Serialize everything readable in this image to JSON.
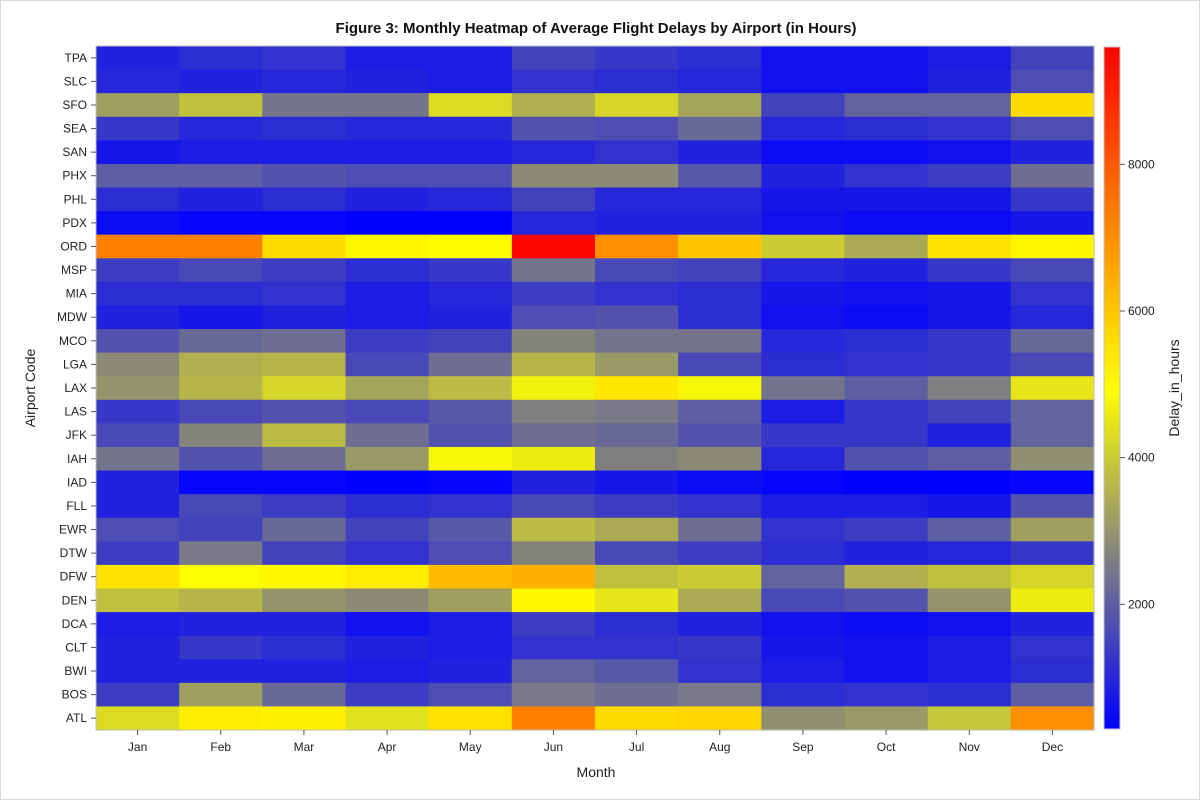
{
  "chart_data": {
    "type": "heatmap",
    "title": "Figure 3: Monthly Heatmap of Average Flight Delays by Airport (in Hours)",
    "xlabel": "Month",
    "ylabel": "Airport Code",
    "colorbar_label": "Delay_in_hours",
    "colorbar_ticks": [
      2000,
      4000,
      6000,
      8000
    ],
    "color_range": [
      300,
      9600
    ],
    "color_stops": [
      "#0000ff",
      "#808080",
      "#ffff00",
      "#ff8000",
      "#ff0000"
    ],
    "months": [
      "Jan",
      "Feb",
      "Mar",
      "Apr",
      "May",
      "Jun",
      "Jul",
      "Aug",
      "Sep",
      "Oct",
      "Nov",
      "Dec"
    ],
    "airports": [
      "TPA",
      "SLC",
      "SFO",
      "SEA",
      "SAN",
      "PHX",
      "PHL",
      "PDX",
      "ORD",
      "MSP",
      "MIA",
      "MDW",
      "MCO",
      "LGA",
      "LAX",
      "LAS",
      "JFK",
      "IAH",
      "IAD",
      "FLL",
      "EWR",
      "DTW",
      "DFW",
      "DEN",
      "DCA",
      "CLT",
      "BWI",
      "BOS",
      "ATL"
    ],
    "values": {
      "TPA": [
        900,
        1100,
        1200,
        800,
        800,
        1500,
        1300,
        1100,
        600,
        600,
        800,
        1500
      ],
      "SLC": [
        1000,
        900,
        1000,
        900,
        800,
        1200,
        1100,
        1000,
        600,
        600,
        900,
        1700
      ],
      "SFO": [
        3200,
        3800,
        2400,
        2400,
        4300,
        3500,
        4200,
        3300,
        1500,
        2100,
        2100,
        5600
      ],
      "SEA": [
        1300,
        1000,
        1100,
        1000,
        1000,
        1800,
        1700,
        2200,
        1000,
        1100,
        1200,
        1700
      ],
      "SAN": [
        700,
        800,
        800,
        800,
        800,
        1000,
        1200,
        900,
        500,
        500,
        600,
        900
      ],
      "PHX": [
        2000,
        2000,
        1800,
        1700,
        1700,
        2800,
        2800,
        1900,
        900,
        1200,
        1400,
        2300
      ],
      "PHL": [
        1100,
        900,
        1100,
        900,
        1000,
        1500,
        1000,
        1000,
        700,
        700,
        700,
        1300
      ],
      "PDX": [
        500,
        400,
        400,
        300,
        300,
        1000,
        900,
        900,
        600,
        500,
        500,
        700
      ],
      "ORD": [
        7300,
        7300,
        5600,
        5100,
        5000,
        9500,
        7000,
        6000,
        4000,
        3400,
        5500,
        5100
      ],
      "MSP": [
        1400,
        1600,
        1400,
        1100,
        1300,
        2400,
        1600,
        1500,
        1000,
        900,
        1300,
        1600
      ],
      "MIA": [
        1100,
        1100,
        1200,
        800,
        1000,
        1400,
        1200,
        1100,
        700,
        600,
        700,
        1200
      ],
      "MDW": [
        900,
        700,
        900,
        800,
        900,
        1700,
        1800,
        1100,
        600,
        500,
        700,
        1000
      ],
      "MCO": [
        1800,
        2200,
        2300,
        1400,
        1500,
        2700,
        2400,
        2400,
        1000,
        1100,
        1300,
        2200
      ],
      "LGA": [
        2800,
        3500,
        3600,
        1600,
        2300,
        3600,
        3100,
        1600,
        1100,
        1200,
        1300,
        1600
      ],
      "LAX": [
        3000,
        3600,
        4200,
        3300,
        3700,
        4700,
        5400,
        4800,
        2400,
        2000,
        2600,
        4500
      ],
      "LAS": [
        1300,
        1600,
        1800,
        1600,
        1900,
        2600,
        2500,
        2000,
        800,
        1300,
        1500,
        2100
      ],
      "JFK": [
        1600,
        2700,
        3700,
        2300,
        1800,
        2300,
        2200,
        1800,
        1300,
        1300,
        900,
        2100
      ],
      "IAH": [
        2400,
        1800,
        2300,
        3100,
        4800,
        4600,
        2600,
        2800,
        1000,
        1800,
        2000,
        2900
      ],
      "IAD": [
        900,
        400,
        400,
        300,
        400,
        900,
        700,
        500,
        400,
        300,
        300,
        400
      ],
      "FLL": [
        900,
        1600,
        1400,
        1100,
        1200,
        1600,
        1400,
        1200,
        800,
        800,
        700,
        1800
      ],
      "EWR": [
        1700,
        1500,
        2200,
        1500,
        1900,
        3700,
        3400,
        2300,
        1200,
        1400,
        2000,
        3200
      ],
      "DTW": [
        1400,
        2500,
        1500,
        1200,
        1700,
        2700,
        1600,
        1400,
        1100,
        900,
        1000,
        1300
      ],
      "DFW": [
        5500,
        4900,
        5100,
        5300,
        6200,
        6400,
        3800,
        4000,
        2100,
        3500,
        3800,
        4200
      ],
      "DEN": [
        3800,
        3600,
        3000,
        2800,
        3200,
        5100,
        4500,
        3400,
        1600,
        1800,
        3000,
        4600
      ],
      "DCA": [
        800,
        900,
        900,
        600,
        800,
        1400,
        1100,
        900,
        600,
        500,
        600,
        900
      ],
      "CLT": [
        900,
        1300,
        1100,
        900,
        800,
        1200,
        1200,
        1300,
        700,
        600,
        800,
        1200
      ],
      "BWI": [
        900,
        900,
        900,
        800,
        900,
        2100,
        1900,
        1200,
        800,
        600,
        800,
        1100
      ],
      "BOS": [
        1400,
        3200,
        2200,
        1400,
        1700,
        2500,
        2300,
        2500,
        1100,
        1200,
        1100,
        2000
      ],
      "ATL": [
        4300,
        5300,
        5200,
        4400,
        5500,
        7300,
        5600,
        5700,
        2900,
        3100,
        3900,
        7000
      ]
    }
  }
}
